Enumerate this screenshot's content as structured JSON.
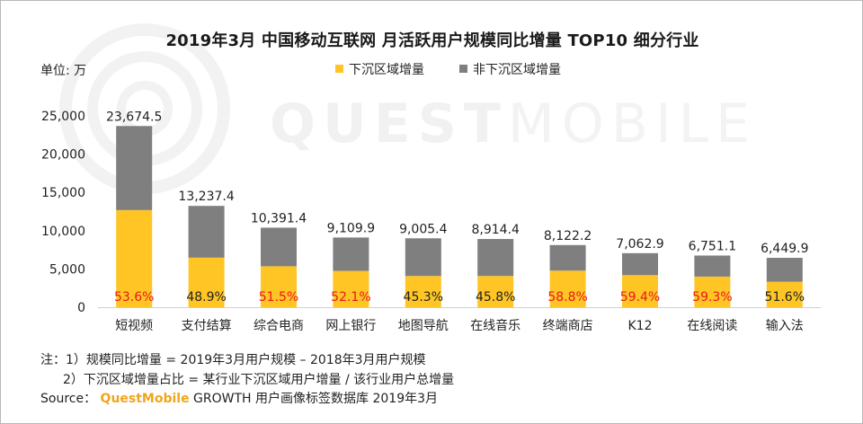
{
  "watermark": {
    "brand_strong": "QUEST",
    "brand_light": "MOBILE"
  },
  "title": "2019年3月 中国移动互联网 月活跃用户规模同比增量 TOP10 细分行业",
  "unit_label": "单位: 万",
  "legend": [
    {
      "label": "下沉区域增量",
      "color": "#FFC525"
    },
    {
      "label": "非下沉区域增量",
      "color": "#7F7F7F"
    }
  ],
  "chart_data": {
    "type": "bar",
    "stacked": true,
    "categories": [
      "短视频",
      "支付结算",
      "综合电商",
      "网上银行",
      "地图导航",
      "在线音乐",
      "终端商店",
      "K12",
      "在线阅读",
      "输入法"
    ],
    "totals": [
      23674.5,
      13237.4,
      10391.4,
      9109.9,
      9005.4,
      8914.4,
      8122.2,
      7062.9,
      6751.1,
      6449.9
    ],
    "total_labels": [
      "23,674.5",
      "13,237.4",
      "10,391.4",
      "9,109.9",
      "9,005.4",
      "8,914.4",
      "8,122.2",
      "7,062.9",
      "6,751.1",
      "6,449.9"
    ],
    "share_labels": [
      "53.6%",
      "48.9%",
      "51.5%",
      "52.1%",
      "45.3%",
      "45.8%",
      "58.8%",
      "59.4%",
      "59.3%",
      "51.6%"
    ],
    "share_values": [
      0.536,
      0.489,
      0.515,
      0.521,
      0.453,
      0.458,
      0.588,
      0.594,
      0.593,
      0.516
    ],
    "series": [
      {
        "name": "下沉区域增量",
        "values": [
          12689.5,
          6473.1,
          5351.6,
          4746.3,
          4079.4,
          4082.8,
          4775.9,
          4195.4,
          4003.4,
          3328.1
        ]
      },
      {
        "name": "非下沉区域增量",
        "values": [
          10985.0,
          6764.3,
          5039.8,
          4363.6,
          4926.0,
          4831.6,
          3346.3,
          2867.5,
          2747.7,
          3121.8
        ]
      }
    ],
    "share_highlight": [
      true,
      false,
      true,
      true,
      false,
      false,
      true,
      true,
      true,
      false
    ],
    "highlight_color": "#E8191B",
    "normal_label_color": "#222222",
    "yticks": [
      0,
      5000,
      10000,
      15000,
      20000,
      25000
    ],
    "ytick_labels": [
      "0",
      "5,000",
      "10,000",
      "15,000",
      "20,000",
      "25,000"
    ],
    "ylim": [
      0,
      25000
    ],
    "xlabel": "",
    "ylabel": "单位: 万",
    "grid": false,
    "legend_position": "top-center"
  },
  "notes": {
    "line1": "注：1）规模同比增量 = 2019年3月用户规模 – 2018年3月用户规模",
    "line2": "2）下沉区域增量占比 = 某行业下沉区域用户增量 / 该行业用户总增量",
    "source_prefix": "Source：",
    "source_brand": "QuestMobile",
    "source_suffix": " GROWTH 用户画像标签数据库 2019年3月"
  }
}
